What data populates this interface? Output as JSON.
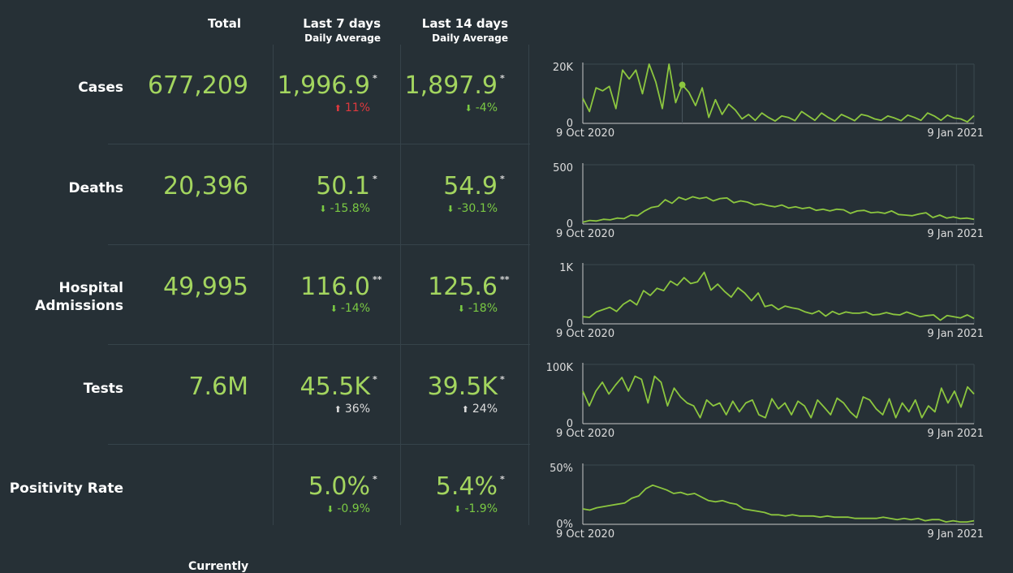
{
  "headers": {
    "total": "Total",
    "last7": "Last 7 days",
    "last14": "Last 14 days",
    "sub": "Daily Average"
  },
  "rows": [
    {
      "label": "Cases",
      "total": "677,209",
      "avg7": "1,996.9",
      "star7": "*",
      "chg7": "11%",
      "dir7": "up-red",
      "avg14": "1,897.9",
      "star14": "*",
      "chg14": "-4%",
      "dir14": "down"
    },
    {
      "label": "Deaths",
      "total": "20,396",
      "avg7": "50.1",
      "star7": "*",
      "chg7": "-15.8%",
      "dir7": "down",
      "avg14": "54.9",
      "star14": "*",
      "chg14": "-30.1%",
      "dir14": "down"
    },
    {
      "label": "Hospital Admissions",
      "total": "49,995",
      "avg7": "116.0",
      "star7": "**",
      "chg7": "-14%",
      "dir7": "down",
      "avg14": "125.6",
      "star14": "**",
      "chg14": "-18%",
      "dir14": "down"
    },
    {
      "label": "Tests",
      "total": "7.6M",
      "avg7": "45.5K",
      "star7": "*",
      "chg7": "36%",
      "dir7": "up-grey",
      "avg14": "39.5K",
      "star14": "*",
      "chg14": "24%",
      "dir14": "up-grey"
    },
    {
      "label": "Positivity Rate",
      "total": "",
      "avg7": "5.0%",
      "star7": "*",
      "chg7": "-0.9%",
      "dir7": "down",
      "avg14": "5.4%",
      "star14": "*",
      "chg14": "-1.9%",
      "dir14": "down"
    }
  ],
  "footer_text": "Currently",
  "colors": {
    "line": "#8cc63f",
    "value": "#a3d55f",
    "down": "#7ac943",
    "up_red": "#e0393e",
    "up_grey": "#dddddd"
  },
  "chart_data": [
    {
      "type": "line",
      "ylim": [
        0,
        20000
      ],
      "ytick_labels": [
        "0",
        "20K"
      ],
      "xtick_labels": [
        "9 Oct 2020",
        "9 Jan 2021"
      ],
      "values": [
        8500,
        4000,
        12000,
        11000,
        12500,
        5000,
        18000,
        15000,
        18000,
        10000,
        22000,
        14000,
        5000,
        21000,
        7000,
        13000,
        10500,
        6000,
        12000,
        2000,
        8000,
        3000,
        6500,
        4500,
        1500,
        3000,
        1000,
        3500,
        2000,
        800,
        2500,
        2000,
        900,
        4000,
        2500,
        1000,
        3500,
        2000,
        800,
        3000,
        2000,
        900,
        3000,
        2500,
        1500,
        1000,
        2500,
        1800,
        900,
        2800,
        2000,
        1000,
        3500,
        2500,
        1000,
        2800,
        1800,
        1500,
        500,
        2600
      ],
      "marker_index": 15
    },
    {
      "type": "line",
      "ylim": [
        0,
        500
      ],
      "ytick_labels": [
        "0",
        "500"
      ],
      "xtick_labels": [
        "9 Oct 2020",
        "9 Jan 2021"
      ],
      "values": [
        15,
        30,
        25,
        40,
        35,
        50,
        45,
        75,
        70,
        110,
        140,
        150,
        205,
        175,
        225,
        205,
        230,
        215,
        225,
        195,
        215,
        220,
        180,
        195,
        185,
        160,
        170,
        155,
        145,
        160,
        135,
        145,
        130,
        140,
        115,
        125,
        110,
        125,
        120,
        90,
        110,
        115,
        95,
        100,
        90,
        110,
        80,
        75,
        70,
        85,
        95,
        55,
        75,
        50,
        60,
        45,
        50,
        40
      ]
    },
    {
      "type": "line",
      "ylim": [
        0,
        1000
      ],
      "ytick_labels": [
        "0",
        "1K"
      ],
      "xtick_labels": [
        "9 Oct 2020",
        "9 Jan 2021"
      ],
      "values": [
        120,
        110,
        200,
        240,
        280,
        210,
        330,
        400,
        320,
        560,
        480,
        600,
        560,
        720,
        650,
        780,
        680,
        710,
        870,
        570,
        670,
        550,
        450,
        610,
        520,
        390,
        520,
        290,
        320,
        240,
        300,
        270,
        250,
        200,
        170,
        220,
        130,
        210,
        160,
        200,
        180,
        180,
        200,
        150,
        160,
        190,
        160,
        150,
        200,
        160,
        120,
        140,
        150,
        60,
        140,
        120,
        100,
        150,
        90
      ]
    },
    {
      "type": "line",
      "ylim": [
        0,
        100000
      ],
      "ytick_labels": [
        "0",
        "100K"
      ],
      "xtick_labels": [
        "9 Oct 2020",
        "9 Jan 2021"
      ],
      "values": [
        55000,
        30000,
        55000,
        70000,
        50000,
        65000,
        78000,
        55000,
        80000,
        75000,
        35000,
        80000,
        70000,
        30000,
        60000,
        45000,
        35000,
        30000,
        10000,
        40000,
        30000,
        35000,
        15000,
        38000,
        20000,
        35000,
        40000,
        15000,
        10000,
        42000,
        25000,
        35000,
        15000,
        38000,
        30000,
        10000,
        40000,
        28000,
        15000,
        43000,
        35000,
        20000,
        10000,
        45000,
        40000,
        25000,
        15000,
        42000,
        10000,
        35000,
        20000,
        40000,
        10000,
        30000,
        20000,
        60000,
        35000,
        55000,
        28000,
        62000,
        50000
      ]
    },
    {
      "type": "line",
      "ylim": [
        0,
        50
      ],
      "ytick_labels": [
        "0%",
        "50%"
      ],
      "xtick_labels": [
        "9 Oct 2020",
        "9 Jan 2021"
      ],
      "values": [
        13,
        12,
        14,
        15,
        16,
        17,
        18,
        22,
        24,
        30,
        33,
        31,
        29,
        26,
        27,
        25,
        26,
        23,
        20,
        19,
        20,
        18,
        17,
        13,
        12,
        11,
        10,
        8,
        8,
        7,
        8,
        7,
        7,
        7,
        6,
        7,
        6,
        6,
        6,
        5,
        5,
        5,
        5,
        6,
        5,
        4,
        5,
        4,
        5,
        3,
        4,
        4,
        2,
        3,
        2,
        2,
        3
      ]
    }
  ]
}
